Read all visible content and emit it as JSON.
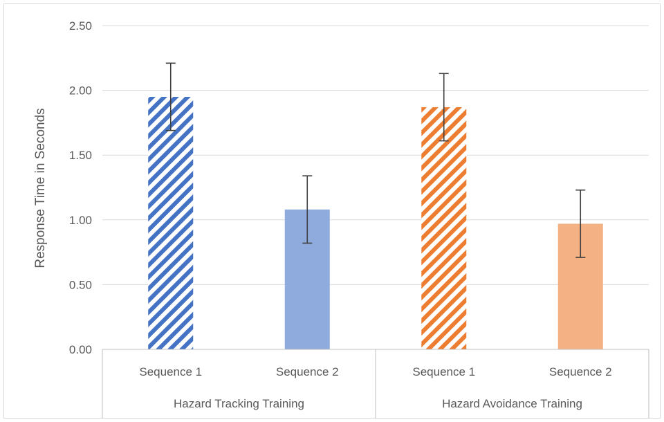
{
  "chart_data": {
    "type": "bar",
    "title": "",
    "ylabel": "Response Time in Seconds",
    "xlabel": "",
    "ylim": [
      0,
      2.5
    ],
    "yticks": [
      "0.00",
      "0.50",
      "1.00",
      "1.50",
      "2.00",
      "2.50"
    ],
    "ytick_values": [
      0,
      0.5,
      1.0,
      1.5,
      2.0,
      2.5
    ],
    "grid": true,
    "legend": "none",
    "groups": [
      {
        "label": "Hazard Tracking Training",
        "bars": [
          {
            "category": "Sequence 1",
            "value": 1.95,
            "error": 0.26,
            "color": "#4472C4",
            "pattern": "diagonal-stripes"
          },
          {
            "category": "Sequence 2",
            "value": 1.08,
            "error": 0.26,
            "color": "#8FAADC",
            "pattern": "solid"
          }
        ]
      },
      {
        "label": "Hazard Avoidance Training",
        "bars": [
          {
            "category": "Sequence 1",
            "value": 1.87,
            "error": 0.26,
            "color": "#ED7D31",
            "pattern": "diagonal-stripes"
          },
          {
            "category": "Sequence 2",
            "value": 0.97,
            "error": 0.26,
            "color": "#F4B183",
            "pattern": "solid"
          }
        ]
      }
    ],
    "colors": {
      "gridline": "#d9d9d9",
      "axis": "#bfbfbf",
      "error_bar": "#404040",
      "text": "#595959"
    }
  }
}
